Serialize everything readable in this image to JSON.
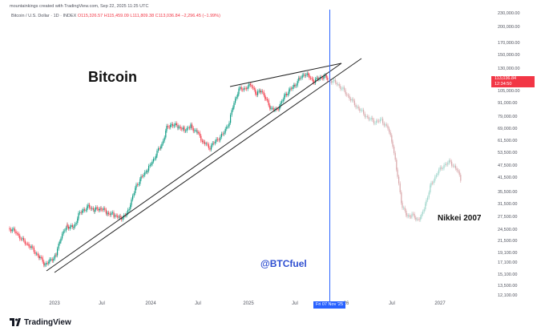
{
  "header": {
    "creator": "mountainkings created with TradingView.com, Sep 22, 2025 11:25 UTC",
    "symbol": "Bitcoin / U.S. Dollar · 1D · INDEX",
    "ohlc": "O115,326.57  H115,459.09  L111,809.38  C113,036.84  −2,296.45 (−1.99%)"
  },
  "price_axis": [
    "230,000.00",
    "200,000.00",
    "170,000.00",
    "150,000.00",
    "130,000.00",
    "105,000.00",
    "91,000.00",
    "79,000.00",
    "69,000.00",
    "61,500.00",
    "53,500.00",
    "47,500.00",
    "41,500.00",
    "35,500.00",
    "31,500.00",
    "27,500.00",
    "24,500.00",
    "21,500.00",
    "19,100.00",
    "17,100.00",
    "15,100.00",
    "13,500.00",
    "12,100.00"
  ],
  "current_price": {
    "value": "113,036.84",
    "countdown": "12:34:50"
  },
  "time_axis": [
    "2023",
    "Jul",
    "2024",
    "Jul",
    "2025",
    "Jul",
    "26",
    "Jul",
    "2027"
  ],
  "cursor_date": "Fri 07 Nov '25",
  "annotations": {
    "title": "Bitcoin",
    "handle": "@BTCfuel",
    "overlay": "Nikkei 2007"
  },
  "footer": {
    "logo_text": "TradingView"
  },
  "colors": {
    "up": "#089981",
    "down": "#f23645",
    "ghost": "#d9a6aa",
    "cursor": "#2962ff"
  }
}
